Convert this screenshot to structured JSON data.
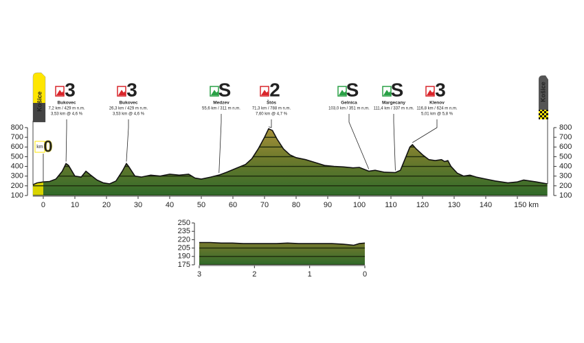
{
  "chart_data": [
    {
      "type": "area",
      "x": [
        -3.3,
        -2,
        0,
        2,
        4,
        6,
        7.2,
        8,
        10,
        12,
        13.5,
        15,
        17,
        19,
        21,
        23,
        25,
        26.3,
        27,
        29,
        31,
        34,
        37,
        40,
        43,
        46,
        48,
        50,
        53,
        55.6,
        58,
        61,
        64,
        66,
        68,
        70,
        71.3,
        72.5,
        74,
        76,
        78,
        80,
        83,
        86,
        89,
        92,
        95,
        98,
        100,
        103,
        105,
        108,
        111.4,
        113,
        114.5,
        116,
        116.8,
        118,
        120,
        122,
        124,
        126,
        127,
        128,
        129,
        131,
        133,
        135,
        137,
        140,
        143,
        145,
        147,
        150,
        152,
        154,
        156,
        159.5
      ],
      "values": [
        210,
        230,
        240,
        245,
        270,
        350,
        429,
        410,
        300,
        290,
        350,
        310,
        260,
        230,
        220,
        250,
        350,
        429,
        400,
        300,
        290,
        310,
        300,
        320,
        310,
        320,
        280,
        270,
        290,
        311,
        340,
        380,
        420,
        480,
        580,
        700,
        788,
        770,
        680,
        580,
        520,
        490,
        470,
        440,
        410,
        400,
        395,
        385,
        390,
        351,
        360,
        340,
        337,
        360,
        480,
        600,
        624,
        580,
        520,
        470,
        460,
        470,
        450,
        460,
        400,
        330,
        300,
        310,
        290,
        270,
        250,
        240,
        230,
        240,
        260,
        250,
        240,
        220
      ],
      "xlim": [
        -3.3,
        159.5
      ],
      "ylim": [
        100,
        800
      ],
      "xticks": [
        0,
        10,
        20,
        30,
        40,
        50,
        60,
        70,
        80,
        90,
        100,
        110,
        120,
        130,
        140,
        {
          "value": 150,
          "label": "150 km"
        }
      ],
      "yticks": [
        100,
        200,
        300,
        400,
        500,
        600,
        700,
        800
      ],
      "start_flag": "Košice",
      "finish_flag": "Košice",
      "km_zero": {
        "unit": "km",
        "value": 0
      },
      "climbs": [
        {
          "category": "3",
          "color": "#d9262b",
          "name": "Bukovec",
          "details": [
            "7,2 km / 429 m n.m.",
            "3,53 km @ 4,6 %"
          ],
          "km": 7.2,
          "elevation": 429
        },
        {
          "category": "3",
          "color": "#d9262b",
          "name": "Bukovec",
          "details": [
            "26,3 km / 429 m n.m.",
            "3,53 km @ 4,6 %"
          ],
          "km": 26.3,
          "elevation": 429
        },
        {
          "category": "S",
          "color": "#2aa146",
          "name": "Medzev",
          "details": [
            "55,6 km / 311 m n.m."
          ],
          "km": 55.6,
          "elevation": 311
        },
        {
          "category": "2",
          "color": "#d9262b",
          "name": "Štós",
          "details": [
            "71,3 km / 788 m n.m.",
            "7,60 km @ 4,7 %"
          ],
          "km": 71.3,
          "elevation": 788
        },
        {
          "category": "S",
          "color": "#2aa146",
          "name": "Gelnica",
          "details": [
            "103,0 km / 351 m n.m."
          ],
          "km": 103.0,
          "elevation": 351
        },
        {
          "category": "S",
          "color": "#2aa146",
          "name": "Margecany",
          "details": [
            "111,4 km / 337 m n.m."
          ],
          "km": 111.4,
          "elevation": 337
        },
        {
          "category": "3",
          "color": "#d9262b",
          "name": "Klenov",
          "details": [
            "116,8 km / 624 m n.m.",
            "5,01 km @ 5,8 %"
          ],
          "km": 116.8,
          "elevation": 624
        }
      ]
    },
    {
      "type": "area",
      "x": [
        3,
        2.8,
        2.6,
        2.4,
        2.2,
        2,
        1.8,
        1.6,
        1.4,
        1.2,
        1,
        0.8,
        0.6,
        0.4,
        0.3,
        0.2,
        0.1,
        0
      ],
      "values": [
        215,
        215,
        214,
        214,
        213,
        213,
        213,
        213,
        214,
        213,
        213,
        213,
        213,
        212,
        211,
        210,
        213,
        214
      ],
      "xlim": [
        3,
        0
      ],
      "ylim": [
        175,
        250
      ],
      "xticks": [
        3,
        2,
        1,
        0
      ],
      "yticks": [
        175,
        190,
        205,
        220,
        235,
        250
      ]
    }
  ]
}
